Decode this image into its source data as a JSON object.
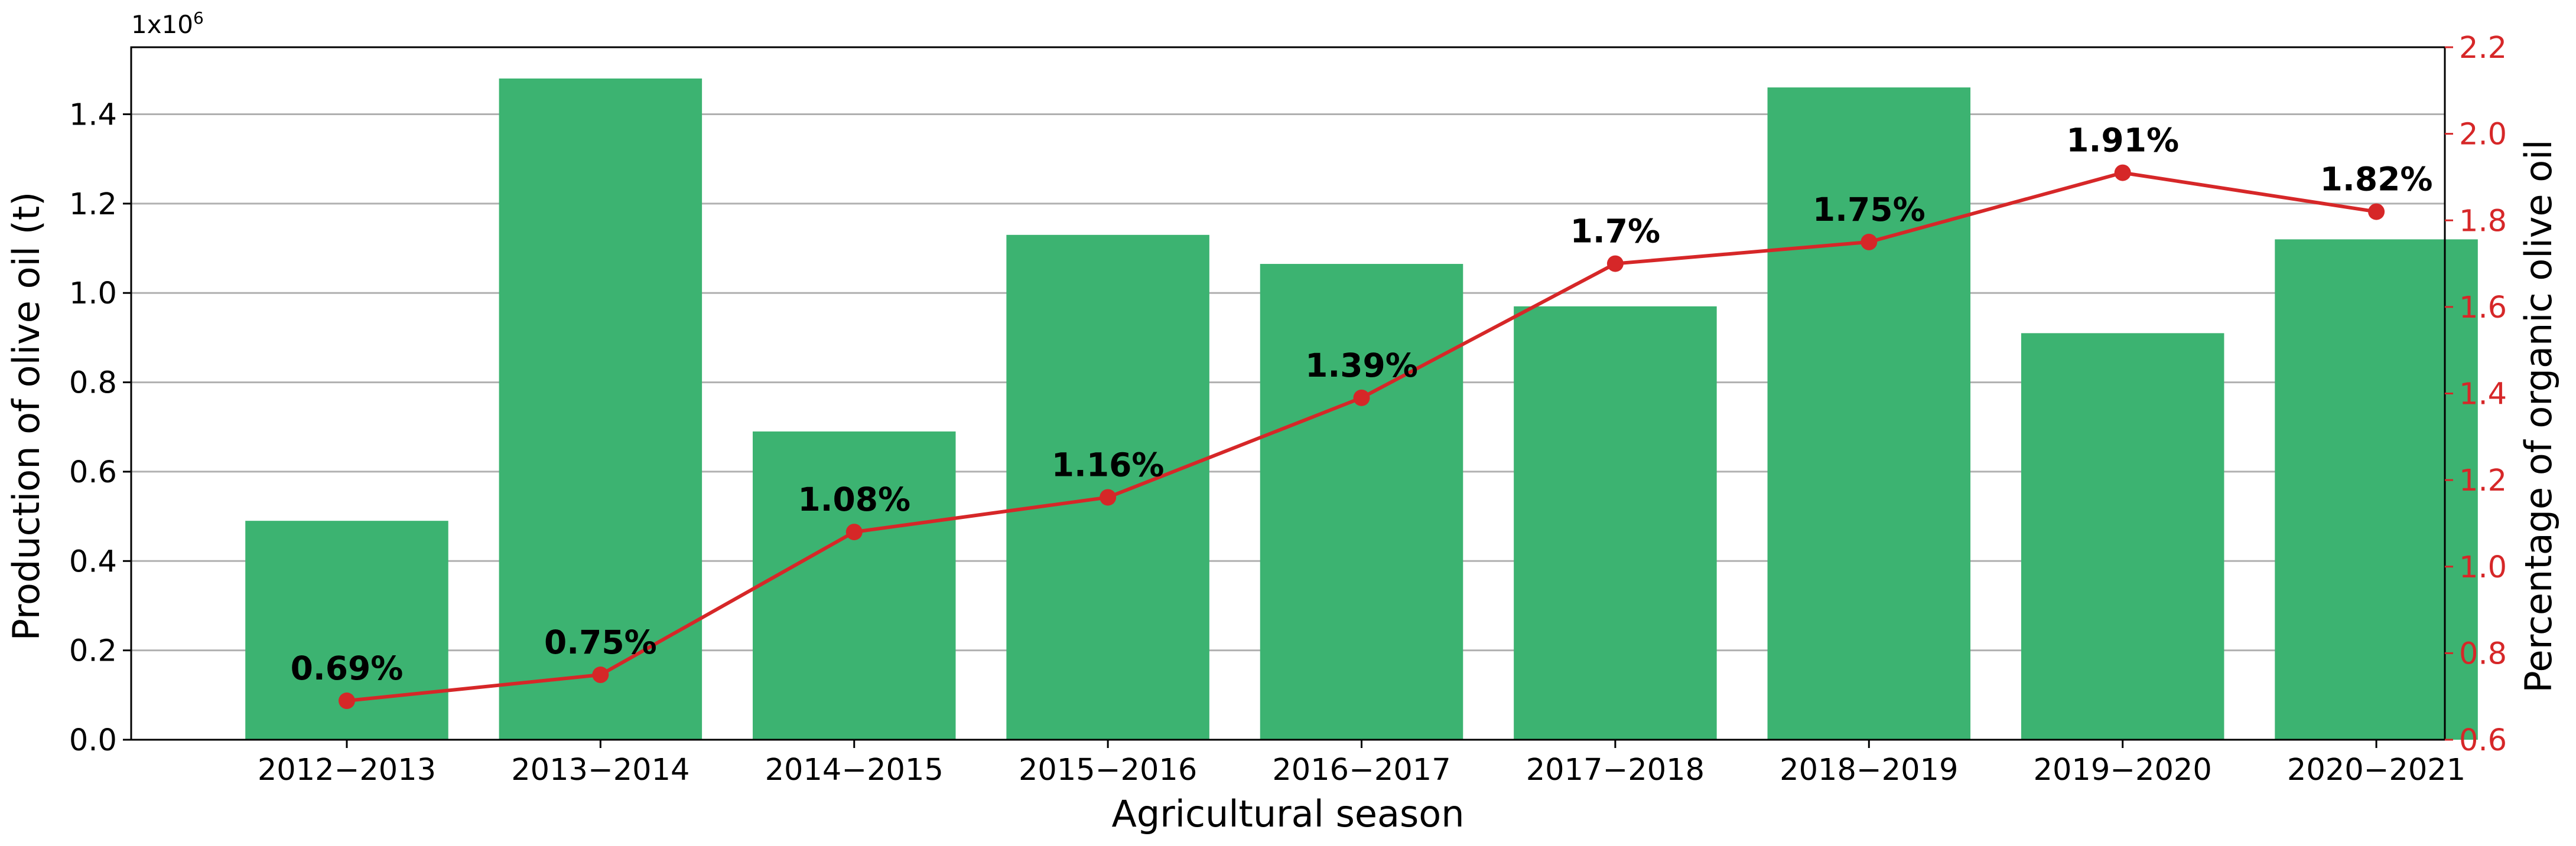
{
  "chart_data": {
    "type": "bar+line",
    "categories": [
      "2012−2013",
      "2013−2014",
      "2014−2015",
      "2015−2016",
      "2016−2017",
      "2017−2018",
      "2018−2019",
      "2019−2020",
      "2020−2021"
    ],
    "bar_series": {
      "name": "Production of olive oil (t)",
      "values": [
        0.49,
        1.48,
        0.69,
        1.13,
        1.065,
        0.97,
        1.46,
        0.91,
        1.12
      ],
      "color": "#3cb371"
    },
    "line_series": {
      "name": "Percentage of organic olive oil",
      "values": [
        0.69,
        0.75,
        1.08,
        1.16,
        1.39,
        1.7,
        1.75,
        1.91,
        1.82
      ],
      "labels": [
        "0.69%",
        "0.75%",
        "1.08%",
        "1.16%",
        "1.39%",
        "1.7%",
        "1.75%",
        "1.91%",
        "1.82%"
      ],
      "color": "#d62728"
    },
    "xlabel": "Agricultural season",
    "ylabel_left": "Production of olive oil (t)",
    "ylabel_right": "Percentage of organic olive oil",
    "y_multiplier_base": "1x10",
    "y_multiplier_exp": "6",
    "ylim_left": [
      0,
      1.55
    ],
    "ylim_right": [
      0.6,
      2.2
    ],
    "yticks_left": [
      "0.0",
      "0.2",
      "0.4",
      "0.6",
      "0.8",
      "1.0",
      "1.2",
      "1.4"
    ],
    "yticks_right": [
      "0.6",
      "0.8",
      "1.0",
      "1.2",
      "1.4",
      "1.6",
      "1.8",
      "2.0",
      "2.2"
    ],
    "grid": true,
    "right_axis_color": "#d62728"
  }
}
